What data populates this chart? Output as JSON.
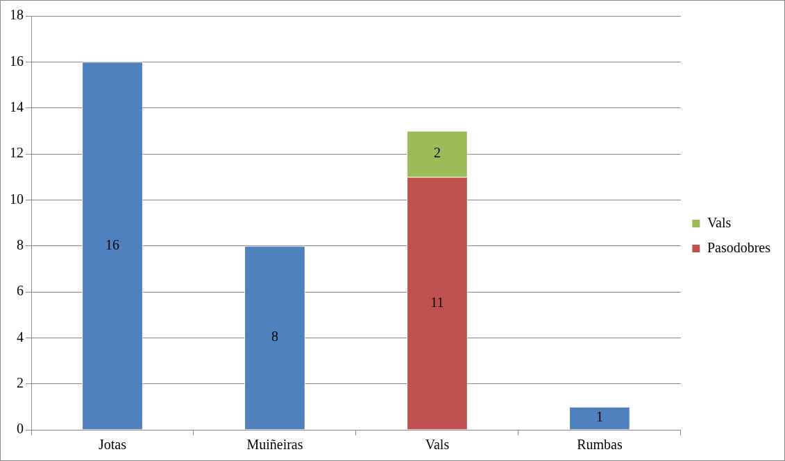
{
  "chart_data": {
    "type": "bar",
    "stacked": true,
    "categories": [
      "Jotas",
      "Muiñeiras",
      "Vals",
      "Rumbas"
    ],
    "series": [
      {
        "color": "#4f81bd",
        "values": [
          16,
          8,
          null,
          1
        ]
      },
      {
        "name": "Pasodobres",
        "color": "#c0504d",
        "values": [
          null,
          null,
          11,
          null
        ]
      },
      {
        "name": "Vals",
        "color": "#9bbb59",
        "values": [
          null,
          null,
          2,
          null
        ]
      }
    ],
    "ylim": [
      0,
      18
    ],
    "yticks": [
      0,
      2,
      4,
      6,
      8,
      10,
      12,
      14,
      16,
      18
    ],
    "grid": "y",
    "legend": "right",
    "data_labels": true
  }
}
